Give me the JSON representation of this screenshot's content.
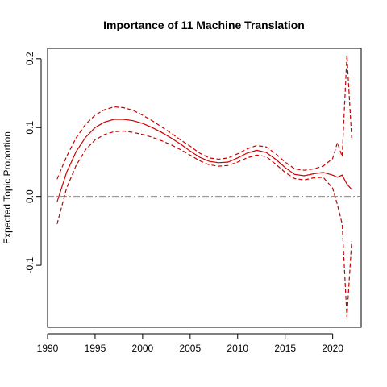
{
  "chart_data": {
    "type": "line",
    "title": "Importance of 11 Machine Translation",
    "xlabel": "",
    "ylabel": "Expected Topic Proportion",
    "xlim": [
      1990,
      2023
    ],
    "ylim": [
      -0.19,
      0.215
    ],
    "x_ticks": [
      1990,
      1995,
      2000,
      2005,
      2010,
      2015,
      2020
    ],
    "y_ticks": [
      -0.1,
      0.0,
      0.1,
      0.2
    ],
    "grid": false,
    "legend": "none",
    "reference_line": {
      "y": 0.0,
      "style": "dash-dot",
      "color": "#888888"
    },
    "series": [
      {
        "role": "estimate",
        "style": "solid",
        "color": "#cc0000",
        "x": [
          1991,
          1992,
          1993,
          1994,
          1995,
          1996,
          1997,
          1998,
          1999,
          2000,
          2001,
          2002,
          2003,
          2004,
          2005,
          2006,
          2007,
          2008,
          2009,
          2010,
          2011,
          2012,
          2013,
          2014,
          2015,
          2016,
          2017,
          2018,
          2019,
          2020,
          2020.5,
          2021,
          2021.5,
          2022
        ],
        "values": [
          -0.008,
          0.035,
          0.065,
          0.086,
          0.1,
          0.108,
          0.112,
          0.112,
          0.11,
          0.106,
          0.1,
          0.093,
          0.085,
          0.076,
          0.066,
          0.057,
          0.051,
          0.049,
          0.05,
          0.056,
          0.063,
          0.067,
          0.064,
          0.054,
          0.042,
          0.032,
          0.03,
          0.033,
          0.035,
          0.031,
          0.028,
          0.031,
          0.018,
          0.01
        ]
      },
      {
        "role": "upper-ci",
        "style": "dashed",
        "color": "#cc0000",
        "x": [
          1991,
          1992,
          1993,
          1994,
          1995,
          1996,
          1997,
          1998,
          1999,
          2000,
          2001,
          2002,
          2003,
          2004,
          2005,
          2006,
          2007,
          2008,
          2009,
          2010,
          2011,
          2012,
          2013,
          2014,
          2015,
          2016,
          2017,
          2018,
          2019,
          2020,
          2020.5,
          2021,
          2021.5,
          2022
        ],
        "values": [
          0.025,
          0.058,
          0.085,
          0.105,
          0.118,
          0.126,
          0.13,
          0.129,
          0.125,
          0.118,
          0.11,
          0.101,
          0.092,
          0.082,
          0.073,
          0.063,
          0.056,
          0.054,
          0.056,
          0.062,
          0.069,
          0.074,
          0.072,
          0.062,
          0.05,
          0.04,
          0.038,
          0.04,
          0.044,
          0.055,
          0.078,
          0.058,
          0.205,
          0.085
        ]
      },
      {
        "role": "lower-ci",
        "style": "dashed",
        "color": "#cc0000",
        "x": [
          1991,
          1992,
          1993,
          1994,
          1995,
          1996,
          1997,
          1998,
          1999,
          2000,
          2001,
          2002,
          2003,
          2004,
          2005,
          2006,
          2007,
          2008,
          2009,
          2010,
          2011,
          2012,
          2013,
          2014,
          2015,
          2016,
          2017,
          2018,
          2019,
          2020,
          2020.5,
          2021,
          2021.5,
          2022
        ],
        "values": [
          -0.04,
          0.012,
          0.045,
          0.068,
          0.082,
          0.09,
          0.094,
          0.095,
          0.093,
          0.09,
          0.086,
          0.081,
          0.075,
          0.068,
          0.06,
          0.052,
          0.046,
          0.044,
          0.045,
          0.05,
          0.056,
          0.06,
          0.058,
          0.047,
          0.035,
          0.026,
          0.024,
          0.027,
          0.028,
          0.012,
          -0.012,
          -0.04,
          -0.175,
          -0.065
        ]
      }
    ]
  }
}
